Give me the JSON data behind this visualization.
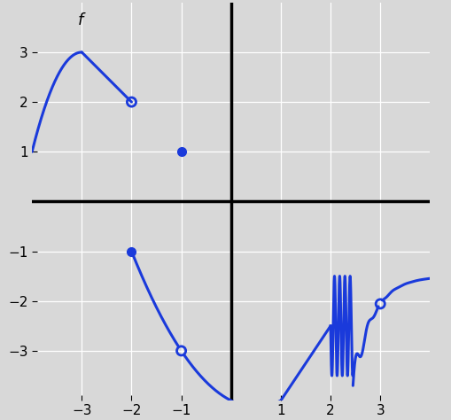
{
  "xlim": [
    -4,
    4
  ],
  "ylim": [
    -4,
    4
  ],
  "xticks": [
    -3,
    -2,
    -1,
    1,
    2,
    3
  ],
  "yticks": [
    -3,
    -2,
    -1,
    1,
    2,
    3
  ],
  "line_color": "#1a3adb",
  "background_color": "#d8d8d8",
  "title_label": "f",
  "grid_color": "white",
  "lw": 2.2,
  "open_r": 0.09,
  "dot_ms": 7
}
